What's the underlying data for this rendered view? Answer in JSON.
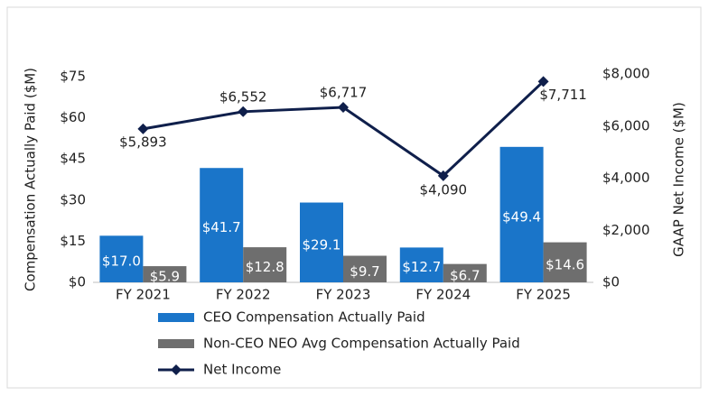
{
  "chart_data": {
    "type": "bar",
    "categories": [
      "FY 2021",
      "FY 2022",
      "FY 2023",
      "FY 2024",
      "FY 2025"
    ],
    "ylabel": "Compensation Actually Paid ($M)",
    "y2label": "GAAP Net Income ($M)",
    "ylim": [
      0,
      75
    ],
    "yticks": [
      {
        "value": 0,
        "label": "$0"
      },
      {
        "value": 15,
        "label": "$15"
      },
      {
        "value": 30,
        "label": "$30"
      },
      {
        "value": 45,
        "label": "$45"
      },
      {
        "value": 60,
        "label": "$60"
      },
      {
        "value": 75,
        "label": "$75"
      }
    ],
    "y2lim": [
      0,
      8000
    ],
    "y2ticks": [
      {
        "value": 0,
        "label": "$0"
      },
      {
        "value": 2000,
        "label": "$2,000"
      },
      {
        "value": 4000,
        "label": "$4,000"
      },
      {
        "value": 6000,
        "label": "$6,000"
      },
      {
        "value": 8000,
        "label": "$8,000"
      }
    ],
    "series": [
      {
        "name": "CEO Compensation Actually Paid",
        "type": "bar",
        "color": "#1a75c9",
        "values": [
          17.0,
          41.7,
          29.1,
          12.7,
          49.4
        ],
        "value_labels": [
          "$17.0",
          "$41.7",
          "$29.1",
          "$12.7",
          "$49.4"
        ]
      },
      {
        "name": "Non-CEO NEO Avg Compensation Actually Paid",
        "type": "bar",
        "color": "#6e6e6e",
        "values": [
          5.9,
          12.8,
          9.7,
          6.7,
          14.6
        ],
        "value_labels": [
          "$5.9",
          "$12.8",
          "$9.7",
          "$6.7",
          "$14.6"
        ]
      },
      {
        "name": "Net Income",
        "type": "line",
        "axis": "y2",
        "color": "#0f1f4b",
        "values": [
          5893,
          6552,
          6717,
          4090,
          7711
        ],
        "value_labels": [
          "$5,893",
          "$6,552",
          "$6,717",
          "$4,090",
          "$7,711"
        ]
      }
    ]
  }
}
